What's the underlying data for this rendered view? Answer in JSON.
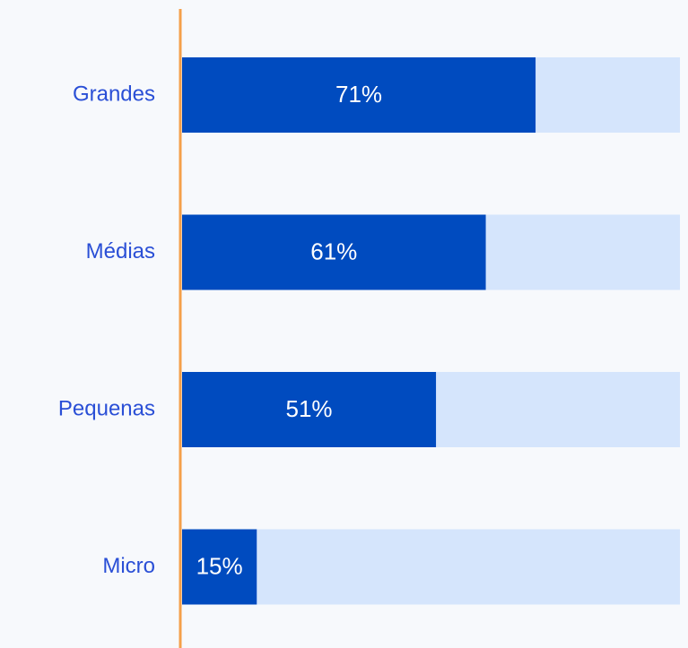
{
  "chart_data": {
    "type": "bar",
    "orientation": "horizontal",
    "categories": [
      "Grandes",
      "Médias",
      "Pequenas",
      "Micro"
    ],
    "values": [
      71,
      61,
      51,
      15
    ],
    "value_labels": [
      "71%",
      "61%",
      "51%",
      "15%"
    ],
    "color": "#004bbf",
    "track_color": "#d5e5fc",
    "axis_color": "#f4a04a",
    "xlim": [
      0,
      100
    ]
  }
}
